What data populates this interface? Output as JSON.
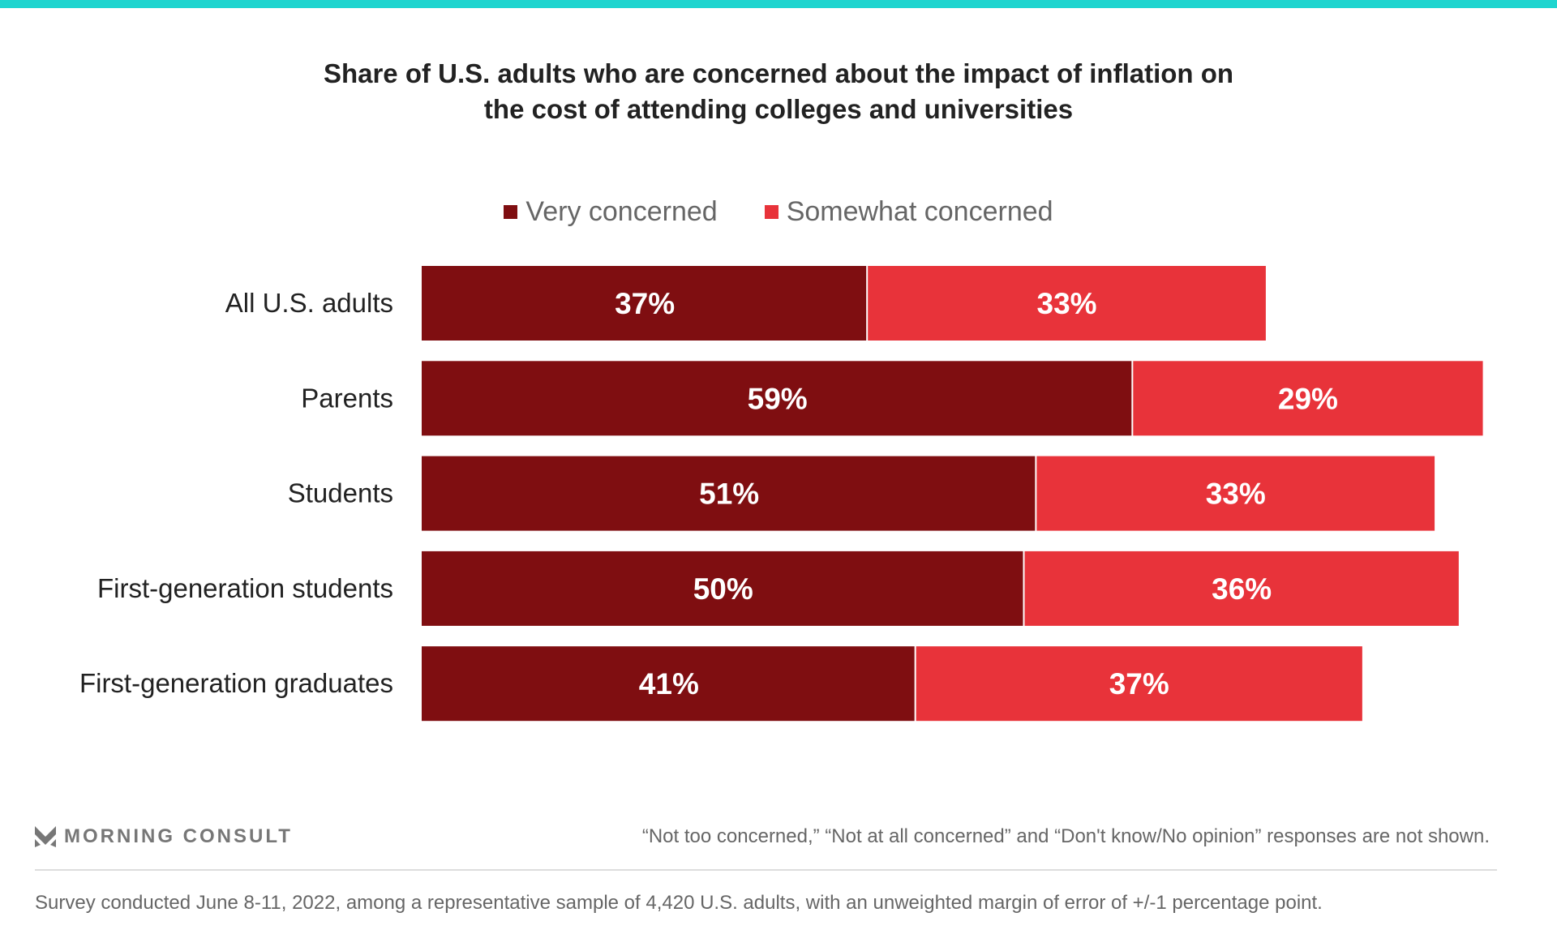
{
  "colors": {
    "top_bar": "#1ed5cf",
    "very": "#7f0e11",
    "somewhat": "#e8333a"
  },
  "chart_data": {
    "type": "bar",
    "orientation": "horizontal",
    "stacked": true,
    "title": "Share of U.S. adults who are concerned about the impact of inflation on the cost of attending colleges and universities",
    "title_lines": [
      "Share of U.S. adults who are concerned about the impact of inflation on",
      "the cost of attending colleges and universities"
    ],
    "legend_placement": "top",
    "categories": [
      "All U.S. adults",
      "Parents",
      "Students",
      "First-generation students",
      "First-generation graduates"
    ],
    "series": [
      {
        "name": "Very concerned",
        "values": [
          37,
          59,
          51,
          50,
          41
        ],
        "labels": [
          "37%",
          "59%",
          "51%",
          "50%",
          "41%"
        ]
      },
      {
        "name": "Somewhat concerned",
        "values": [
          33,
          29,
          33,
          36,
          37
        ],
        "labels": [
          "33%",
          "29%",
          "33%",
          "36%",
          "37%"
        ]
      }
    ],
    "unit": "%",
    "grid": false
  },
  "footer": {
    "logo": "MORNING CONSULT",
    "note": "“Not too concerned,” “Not at all concerned” and “Don't know/No opinion” responses are not shown.",
    "survey": "Survey conducted June 8-11, 2022, among a representative sample of 4,420 U.S. adults, with an unweighted margin of error of +/-1 percentage point."
  }
}
